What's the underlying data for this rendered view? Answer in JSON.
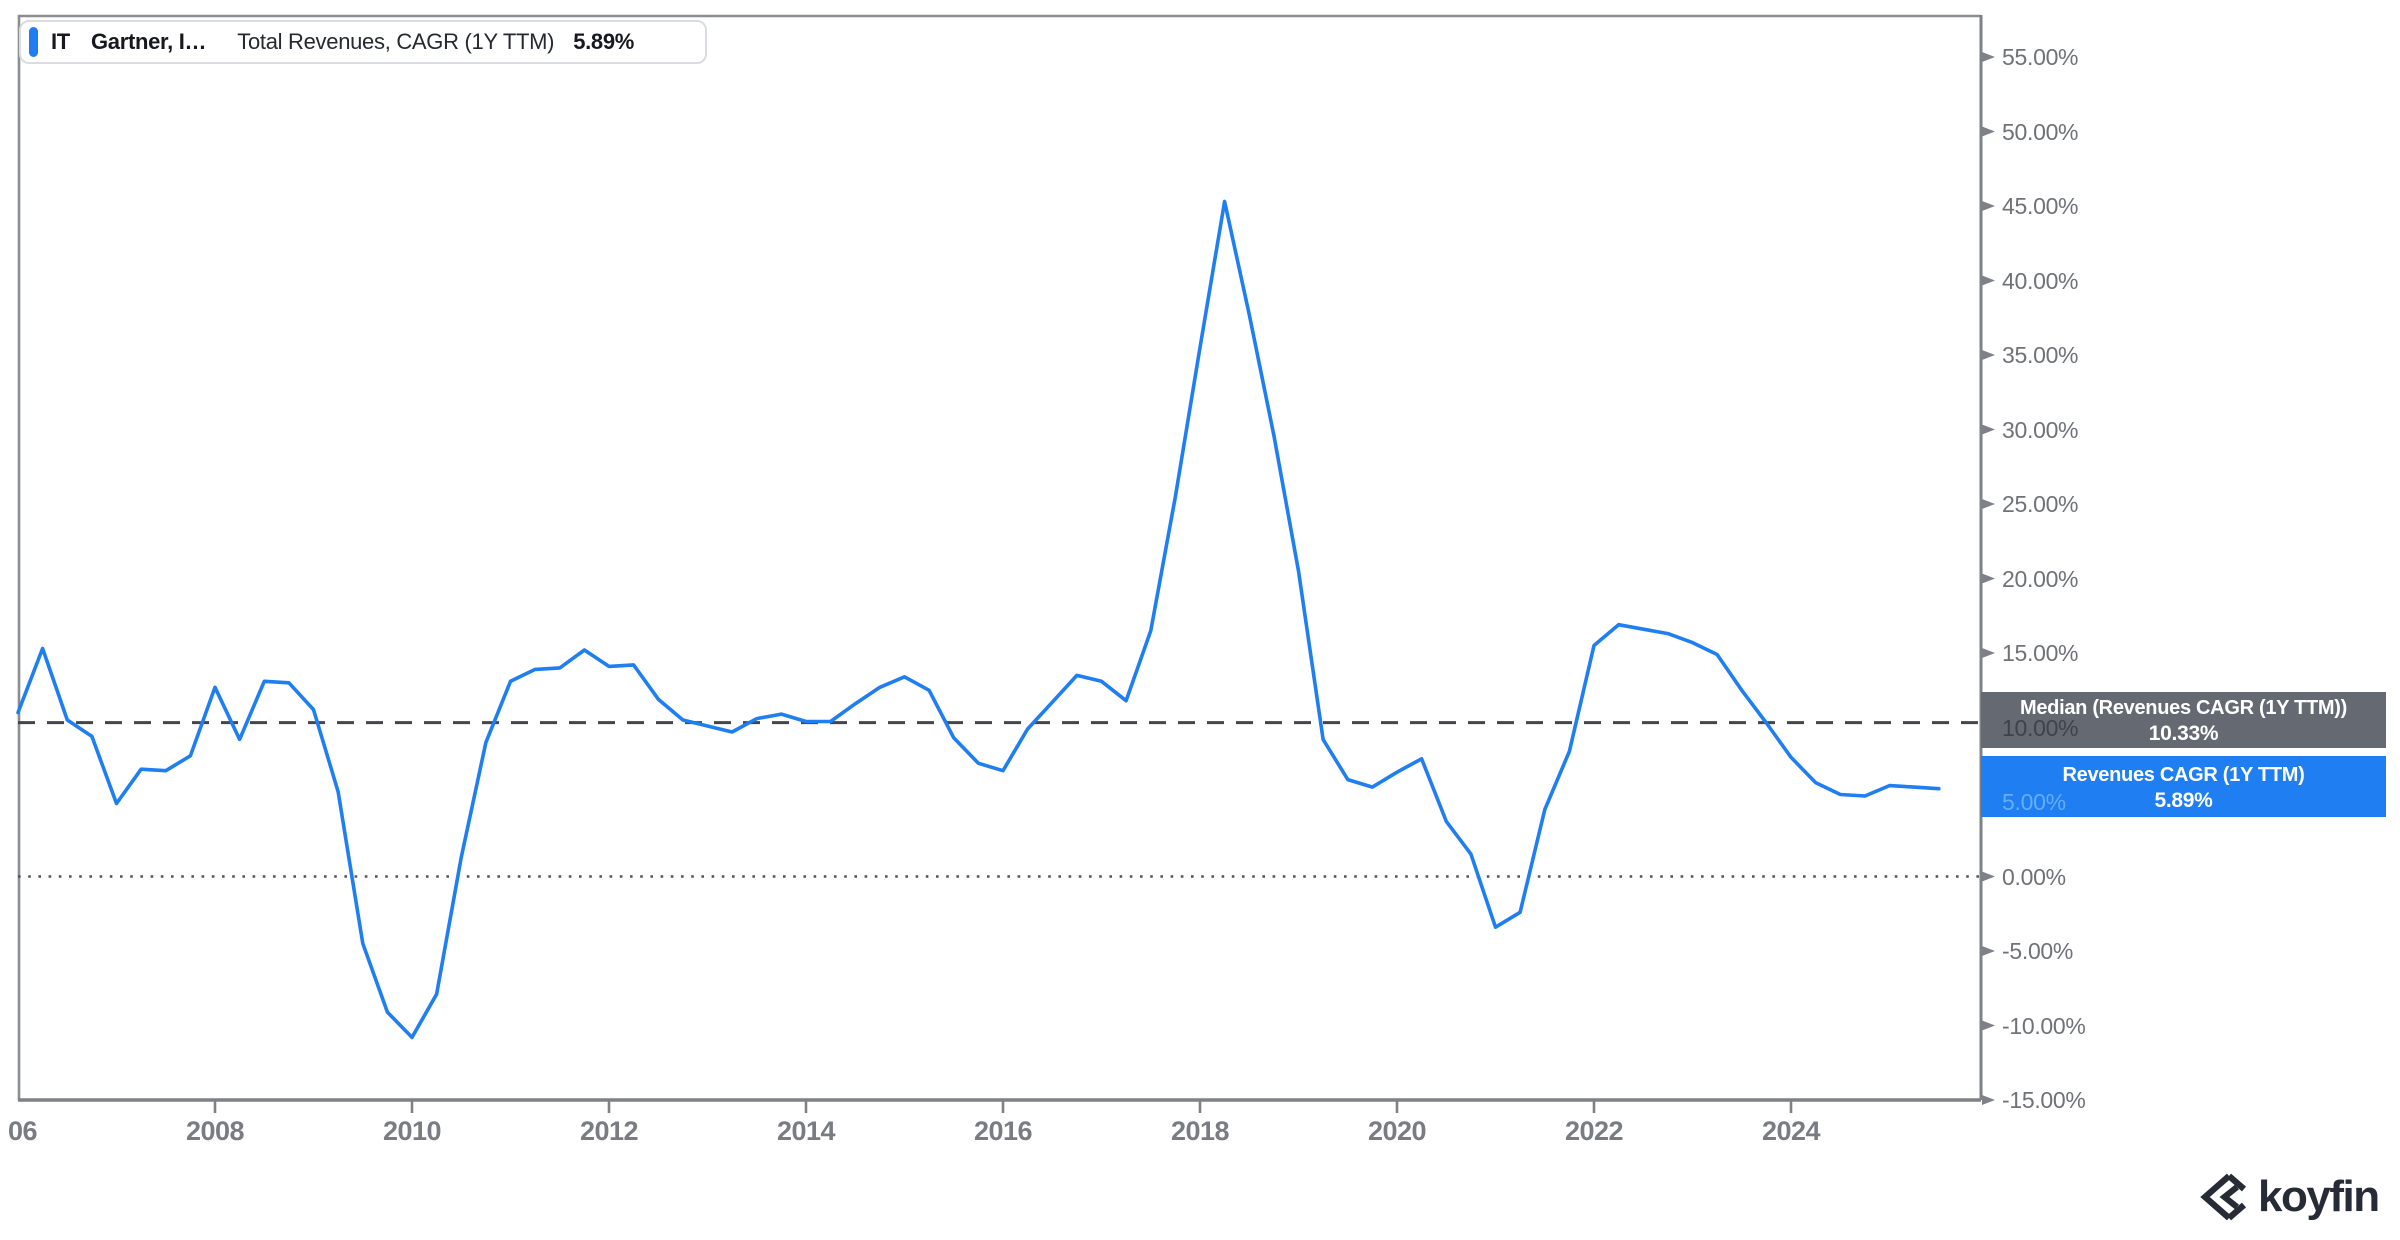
{
  "legend": {
    "ticker": "IT",
    "company": "Gartner, I…",
    "metric": "Total Revenues, CAGR (1Y TTM)",
    "value": "5.89%"
  },
  "chart_data": {
    "type": "line",
    "title": "IT Gartner, Inc. — Total Revenues, CAGR (1Y TTM)",
    "x_start": 2006.0,
    "x_step": 0.25,
    "series": [
      {
        "name": "Revenues CAGR (1Y TTM)",
        "color": "#1e7ef2",
        "values": [
          11.0,
          15.3,
          10.5,
          9.4,
          4.9,
          7.2,
          7.1,
          8.1,
          12.7,
          9.2,
          13.1,
          13.0,
          11.2,
          5.7,
          -4.5,
          -9.1,
          -10.8,
          -7.9,
          1.3,
          9.0,
          13.1,
          13.9,
          14.0,
          15.2,
          14.1,
          14.2,
          11.9,
          10.5,
          10.1,
          9.7,
          10.6,
          10.9,
          10.4,
          10.4,
          11.6,
          12.7,
          13.4,
          12.5,
          9.3,
          7.6,
          7.1,
          9.9,
          11.7,
          13.5,
          13.1,
          11.8,
          16.5,
          25.5,
          35.5,
          45.3,
          37.7,
          29.6,
          20.5,
          9.2,
          6.5,
          6.0,
          7.0,
          7.9,
          3.7,
          1.5,
          -3.4,
          -2.4,
          4.5,
          8.4,
          15.5,
          16.9,
          16.6,
          16.3,
          15.7,
          14.9,
          12.5,
          10.3,
          8.0,
          6.3,
          5.5,
          5.4,
          6.1,
          6.0,
          5.89
        ]
      }
    ],
    "median_line": {
      "value": 10.33,
      "style": "dashed",
      "color": "#43464b"
    },
    "zero_line": {
      "value": 0,
      "style": "dotted",
      "color": "#505358"
    },
    "y_axis": {
      "side": "right",
      "min": -15,
      "max": 55,
      "tick_step": 5,
      "unit": "%",
      "ticks": [
        {
          "label": "55.00%",
          "value": 55
        },
        {
          "label": "50.00%",
          "value": 50
        },
        {
          "label": "45.00%",
          "value": 45
        },
        {
          "label": "40.00%",
          "value": 40
        },
        {
          "label": "35.00%",
          "value": 35
        },
        {
          "label": "30.00%",
          "value": 30
        },
        {
          "label": "25.00%",
          "value": 25
        },
        {
          "label": "20.00%",
          "value": 20
        },
        {
          "label": "15.00%",
          "value": 15
        },
        {
          "label": "10.00%",
          "value": 10,
          "ghost": "gray"
        },
        {
          "label": "5.00%",
          "value": 5,
          "ghost": "blue"
        },
        {
          "label": "0.00%",
          "value": 0
        },
        {
          "label": "-5.00%",
          "value": -5
        },
        {
          "label": "-10.00%",
          "value": -10
        },
        {
          "label": "-15.00%",
          "value": -15
        }
      ]
    },
    "x_axis": {
      "ticks": [
        {
          "label": "06",
          "year": 2006
        },
        {
          "label": "2008",
          "year": 2008
        },
        {
          "label": "2010",
          "year": 2010
        },
        {
          "label": "2012",
          "year": 2012
        },
        {
          "label": "2014",
          "year": 2014
        },
        {
          "label": "2016",
          "year": 2016
        },
        {
          "label": "2018",
          "year": 2018
        },
        {
          "label": "2020",
          "year": 2020
        },
        {
          "label": "2022",
          "year": 2022
        },
        {
          "label": "2024",
          "year": 2024
        }
      ]
    },
    "badges": {
      "median": {
        "line1": "Median (Revenues CAGR (1Y TTM))",
        "line2": "10.33%",
        "bg": "#646972"
      },
      "last": {
        "line1": "Revenues CAGR (1Y TTM)",
        "line2": "5.89%",
        "bg": "#1e7ef2"
      }
    },
    "legend_position": "top-left",
    "grid": "off"
  },
  "watermark": {
    "text": "koyfin"
  }
}
